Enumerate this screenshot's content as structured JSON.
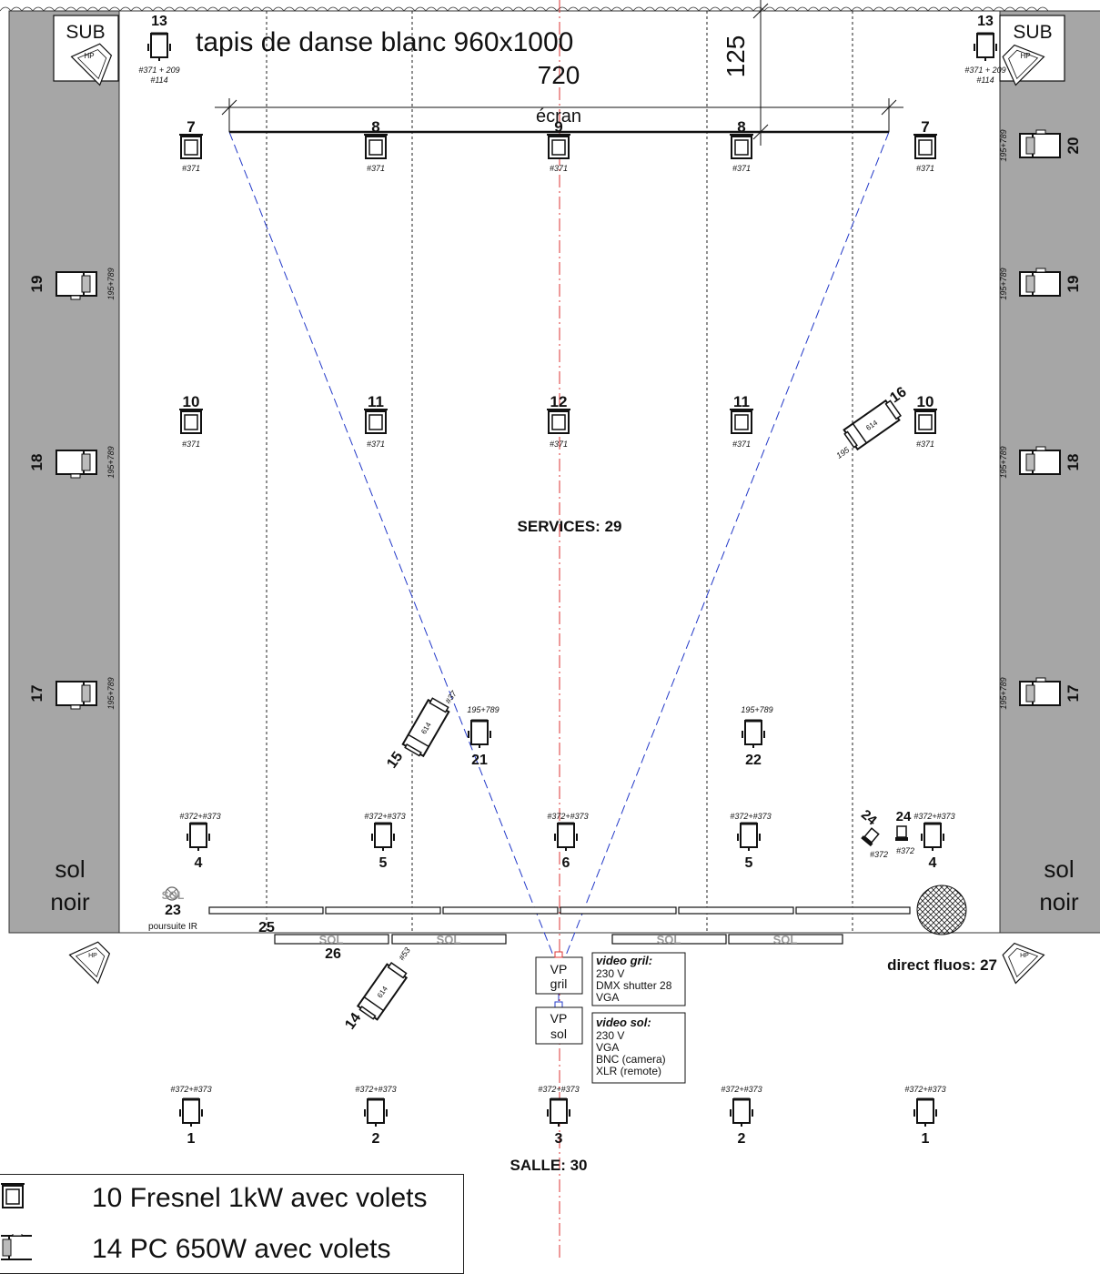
{
  "title": "tapis de danse blanc 960x1000",
  "dims": {
    "width": "720",
    "depth": "125"
  },
  "screen_label": "écran",
  "floor_label_left": [
    "sol",
    "noir"
  ],
  "floor_label_right": [
    "sol",
    "noir"
  ],
  "sub_label": "SUB",
  "speaker_label": "HP",
  "services": "SERVICES: 29",
  "salle": "SALLE: 30",
  "direct_fluos": "direct fluos: 27",
  "poursuite": "poursuite IR",
  "sol_tag": "SOL",
  "vp": [
    {
      "line1": "VP",
      "line2": "gril"
    },
    {
      "line1": "VP",
      "line2": "sol"
    }
  ],
  "video_gril": {
    "title": "video gril:",
    "lines": [
      "230 V",
      "DMX shutter 28",
      "VGA"
    ]
  },
  "video_sol": {
    "title": "video sol:",
    "lines": [
      "230 V",
      "VGA",
      "BNC (camera)",
      "XLR (remote)"
    ]
  },
  "fixtures": {
    "top_subs": [
      {
        "num": "13",
        "gel": "#371 + 209",
        "gel2": "#114"
      },
      {
        "num": "13",
        "gel": "#371 + 209",
        "gel2": "#114"
      }
    ],
    "row_back": [
      {
        "num": "7",
        "gel": "#371"
      },
      {
        "num": "8",
        "gel": "#371"
      },
      {
        "num": "9",
        "gel": "#371"
      },
      {
        "num": "8",
        "gel": "#371"
      },
      {
        "num": "7",
        "gel": "#371"
      }
    ],
    "row_mid": [
      {
        "num": "10",
        "gel": "#371"
      },
      {
        "num": "11",
        "gel": "#371"
      },
      {
        "num": "12",
        "gel": "#371"
      },
      {
        "num": "11",
        "gel": "#371"
      },
      {
        "num": "10",
        "gel": "#371"
      }
    ],
    "row_front": [
      {
        "num": "4",
        "gel": "#372+#373"
      },
      {
        "num": "5",
        "gel": "#372+#373"
      },
      {
        "num": "6",
        "gel": "#372+#373"
      },
      {
        "num": "5",
        "gel": "#372+#373"
      },
      {
        "num": "4",
        "gel": "#372+#373"
      }
    ],
    "row_salle": [
      {
        "num": "1",
        "gel": "#372+#373"
      },
      {
        "num": "2",
        "gel": "#372+#373"
      },
      {
        "num": "3",
        "gel": "#372+#373"
      },
      {
        "num": "2",
        "gel": "#372+#373"
      },
      {
        "num": "1",
        "gel": "#372+#373"
      }
    ],
    "side_left": [
      {
        "num": "19"
      },
      {
        "num": "18"
      },
      {
        "num": "17"
      }
    ],
    "side_right": [
      {
        "num": "20"
      },
      {
        "num": "19"
      },
      {
        "num": "18"
      },
      {
        "num": "17"
      }
    ],
    "side_gel": "195+789",
    "mid_pc": [
      {
        "num": "21",
        "gel": "195+789"
      },
      {
        "num": "22",
        "gel": "195+789"
      }
    ],
    "profiles": [
      {
        "num": "14",
        "gel": "#53",
        "body": "614"
      },
      {
        "num": "15",
        "gel": "#37",
        "body": "614"
      },
      {
        "num": "16",
        "gel": "195",
        "body": "614"
      }
    ],
    "par_24": {
      "num": "24",
      "gel": "#372"
    },
    "sol_23": {
      "num": "23"
    },
    "num_25": "25",
    "num_26": "26"
  },
  "legend": [
    {
      "icon": "fresnel-icon",
      "text": "10 Fresnel 1kW avec volets"
    },
    {
      "icon": "pc-icon",
      "text": "14 PC 650W avec volets"
    }
  ]
}
